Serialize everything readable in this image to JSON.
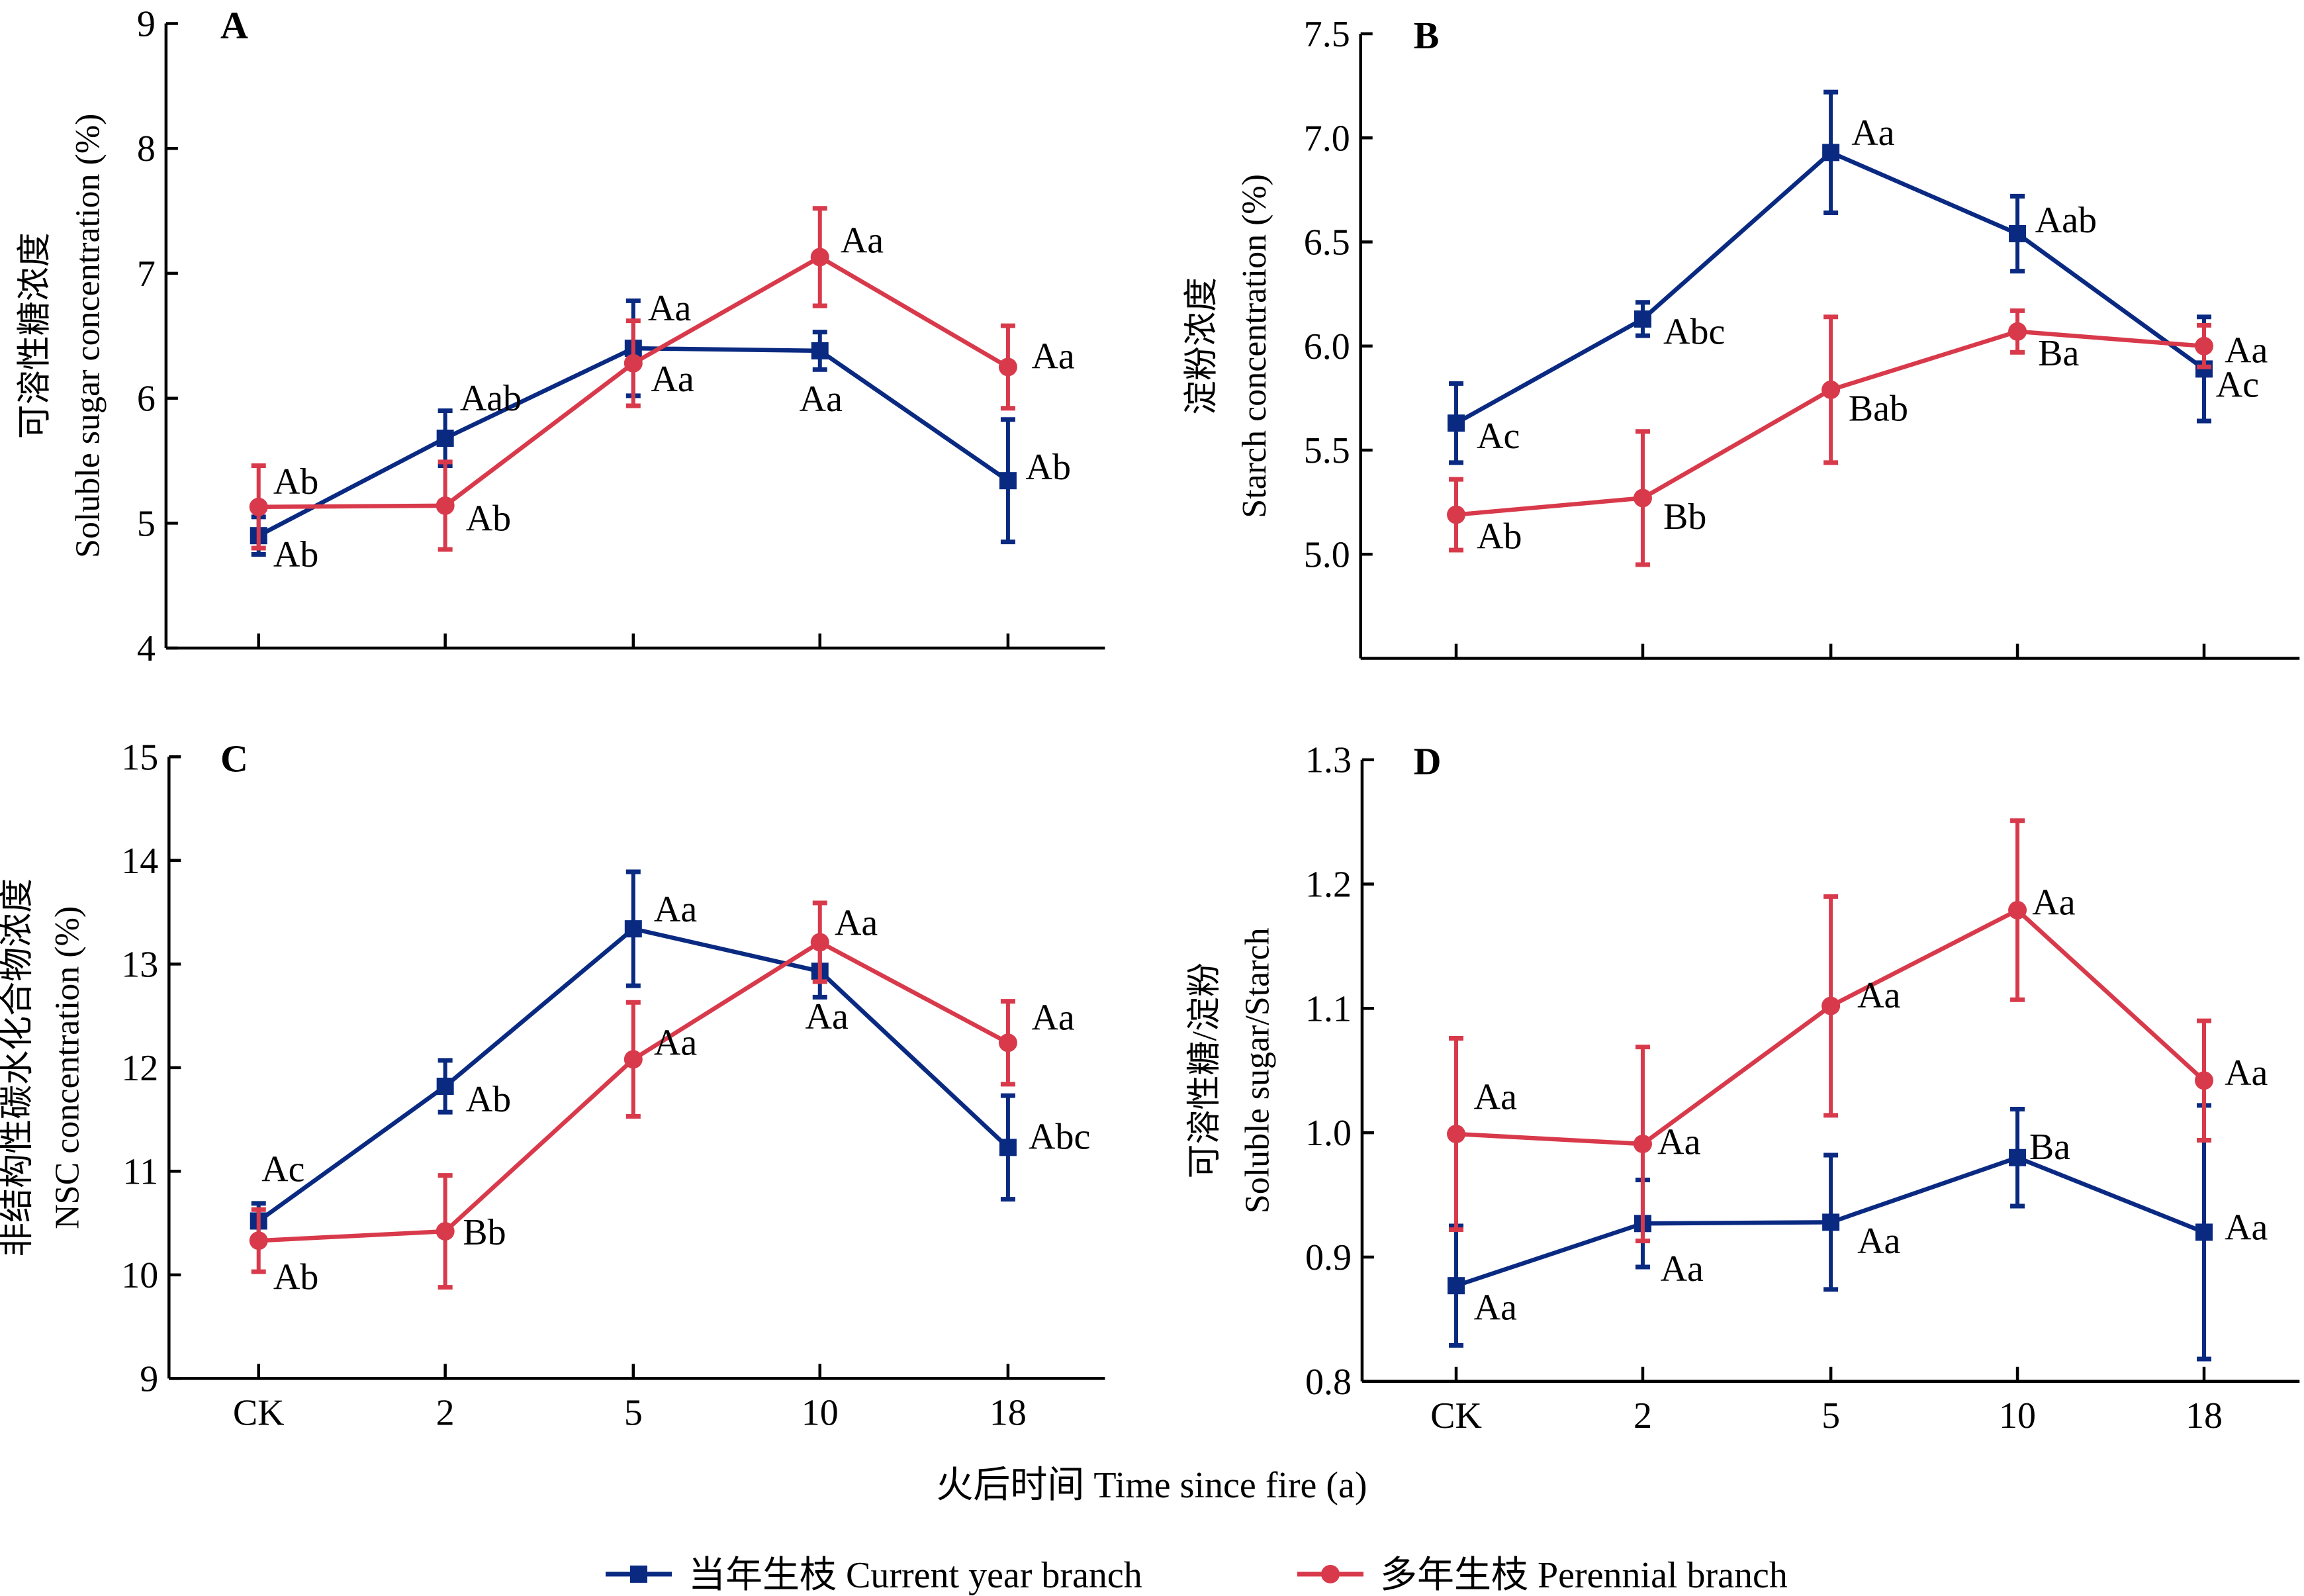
{
  "figure": {
    "x_axis_title": "火后时间 Time since fire (a)",
    "legend": [
      {
        "label": "当年生枝 Current year branch",
        "color": "#0a2a82",
        "marker": "square"
      },
      {
        "label": "多年生枝 Perennial branch",
        "color": "#d83a4b",
        "marker": "circle"
      }
    ]
  },
  "chart_data": [
    {
      "panel": "A",
      "type": "line",
      "title": "",
      "ylabel_cn": "可溶性糖浓度",
      "ylabel_en": "Soluble sugar concentration (%)",
      "xlabel": "",
      "categories": [
        "CK",
        "2",
        "5",
        "10",
        "18"
      ],
      "ylim": [
        4,
        9
      ],
      "yticks": [
        4,
        5,
        6,
        7,
        8,
        9
      ],
      "ytick_labels": [
        "4",
        "5",
        "6",
        "7",
        "8",
        "9"
      ],
      "show_xtick_labels": false,
      "series": [
        {
          "name": "当年生枝 Current year branch",
          "color": "#0a2a82",
          "marker": "square",
          "values": [
            4.9,
            5.68,
            6.4,
            6.38,
            5.34
          ],
          "errors": [
            0.15,
            0.22,
            0.38,
            0.15,
            0.49
          ],
          "labels": [
            "Ab",
            "Aab",
            "Aa",
            "Aa",
            "Ab"
          ]
        },
        {
          "name": "多年生枝 Perennial branch",
          "color": "#d83a4b",
          "marker": "circle",
          "values": [
            5.13,
            5.14,
            6.28,
            7.13,
            6.25
          ],
          "errors": [
            0.33,
            0.35,
            0.34,
            0.39,
            0.33
          ],
          "labels": [
            "Ab",
            "Ab",
            "Aa",
            "Aa",
            "Aa"
          ]
        }
      ]
    },
    {
      "panel": "B",
      "type": "line",
      "title": "",
      "ylabel_cn": "淀粉浓度",
      "ylabel_en": "Starch concentration (%)",
      "xlabel": "",
      "categories": [
        "CK",
        "2",
        "5",
        "10",
        "18"
      ],
      "ylim": [
        4.5,
        7.5
      ],
      "yticks": [
        5.0,
        5.5,
        6.0,
        6.5,
        7.0,
        7.5
      ],
      "ytick_labels": [
        "5.0",
        "5.5",
        "6.0",
        "6.5",
        "7.0",
        "7.5"
      ],
      "show_xtick_labels": false,
      "series": [
        {
          "name": "当年生枝 Current year branch",
          "color": "#0a2a82",
          "marker": "square",
          "values": [
            5.63,
            6.13,
            6.93,
            6.54,
            5.89
          ],
          "errors": [
            0.19,
            0.08,
            0.29,
            0.18,
            0.25
          ],
          "labels": [
            "Ac",
            "Abc",
            "Aa",
            "Aab",
            "Ac"
          ]
        },
        {
          "name": "多年生枝 Perennial branch",
          "color": "#d83a4b",
          "marker": "circle",
          "values": [
            5.19,
            5.27,
            5.79,
            6.07,
            6.0
          ],
          "errors": [
            0.17,
            0.32,
            0.35,
            0.1,
            0.1
          ],
          "labels": [
            "Ab",
            "Bb",
            "Bab",
            "Ba",
            "Aa"
          ]
        }
      ]
    },
    {
      "panel": "C",
      "type": "line",
      "title": "",
      "ylabel_cn": "非结构性碳水化合物浓度",
      "ylabel_en": "NSC concentration (%)",
      "xlabel": "",
      "categories": [
        "CK",
        "2",
        "5",
        "10",
        "18"
      ],
      "ylim": [
        9,
        15
      ],
      "yticks": [
        9,
        10,
        11,
        12,
        13,
        14,
        15
      ],
      "ytick_labels": [
        "9",
        "10",
        "11",
        "12",
        "13",
        "14",
        "15"
      ],
      "show_xtick_labels": true,
      "series": [
        {
          "name": "当年生枝 Current year branch",
          "color": "#0a2a82",
          "marker": "square",
          "values": [
            10.52,
            11.82,
            13.34,
            12.93,
            11.23
          ],
          "errors": [
            0.17,
            0.25,
            0.55,
            0.25,
            0.5
          ],
          "labels": [
            "Ac",
            "Ab",
            "Aa",
            "Aa",
            "Abc"
          ]
        },
        {
          "name": "多年生枝 Perennial branch",
          "color": "#d83a4b",
          "marker": "circle",
          "values": [
            10.33,
            10.42,
            12.08,
            13.21,
            12.24
          ],
          "errors": [
            0.3,
            0.54,
            0.55,
            0.38,
            0.4
          ],
          "labels": [
            "Ab",
            "Bb",
            "Aa",
            "Aa",
            "Aa"
          ]
        }
      ]
    },
    {
      "panel": "D",
      "type": "line",
      "title": "",
      "ylabel_cn": "可溶性糖/淀粉",
      "ylabel_en": "Soluble sugar/Starch",
      "xlabel": "",
      "categories": [
        "CK",
        "2",
        "5",
        "10",
        "18"
      ],
      "ylim": [
        0.8,
        1.3
      ],
      "yticks": [
        0.8,
        0.9,
        1.0,
        1.1,
        1.2,
        1.3
      ],
      "ytick_labels": [
        "0.8",
        "0.9",
        "1.0",
        "1.1",
        "1.2",
        "1.3"
      ],
      "show_xtick_labels": true,
      "series": [
        {
          "name": "当年生枝 Current year branch",
          "color": "#0a2a82",
          "marker": "square",
          "values": [
            0.877,
            0.927,
            0.928,
            0.98,
            0.92
          ],
          "errors": [
            0.048,
            0.035,
            0.054,
            0.039,
            0.102
          ],
          "labels": [
            "Aa",
            "Aa",
            "Aa",
            "Ba",
            "Aa"
          ]
        },
        {
          "name": "多年生枝 Perennial branch",
          "color": "#d83a4b",
          "marker": "circle",
          "values": [
            0.999,
            0.991,
            1.102,
            1.179,
            1.042
          ],
          "errors": [
            0.077,
            0.078,
            0.088,
            0.072,
            0.048
          ],
          "labels": [
            "Aa",
            "Aa",
            "Aa",
            "Aa",
            "Aa"
          ]
        }
      ]
    }
  ]
}
